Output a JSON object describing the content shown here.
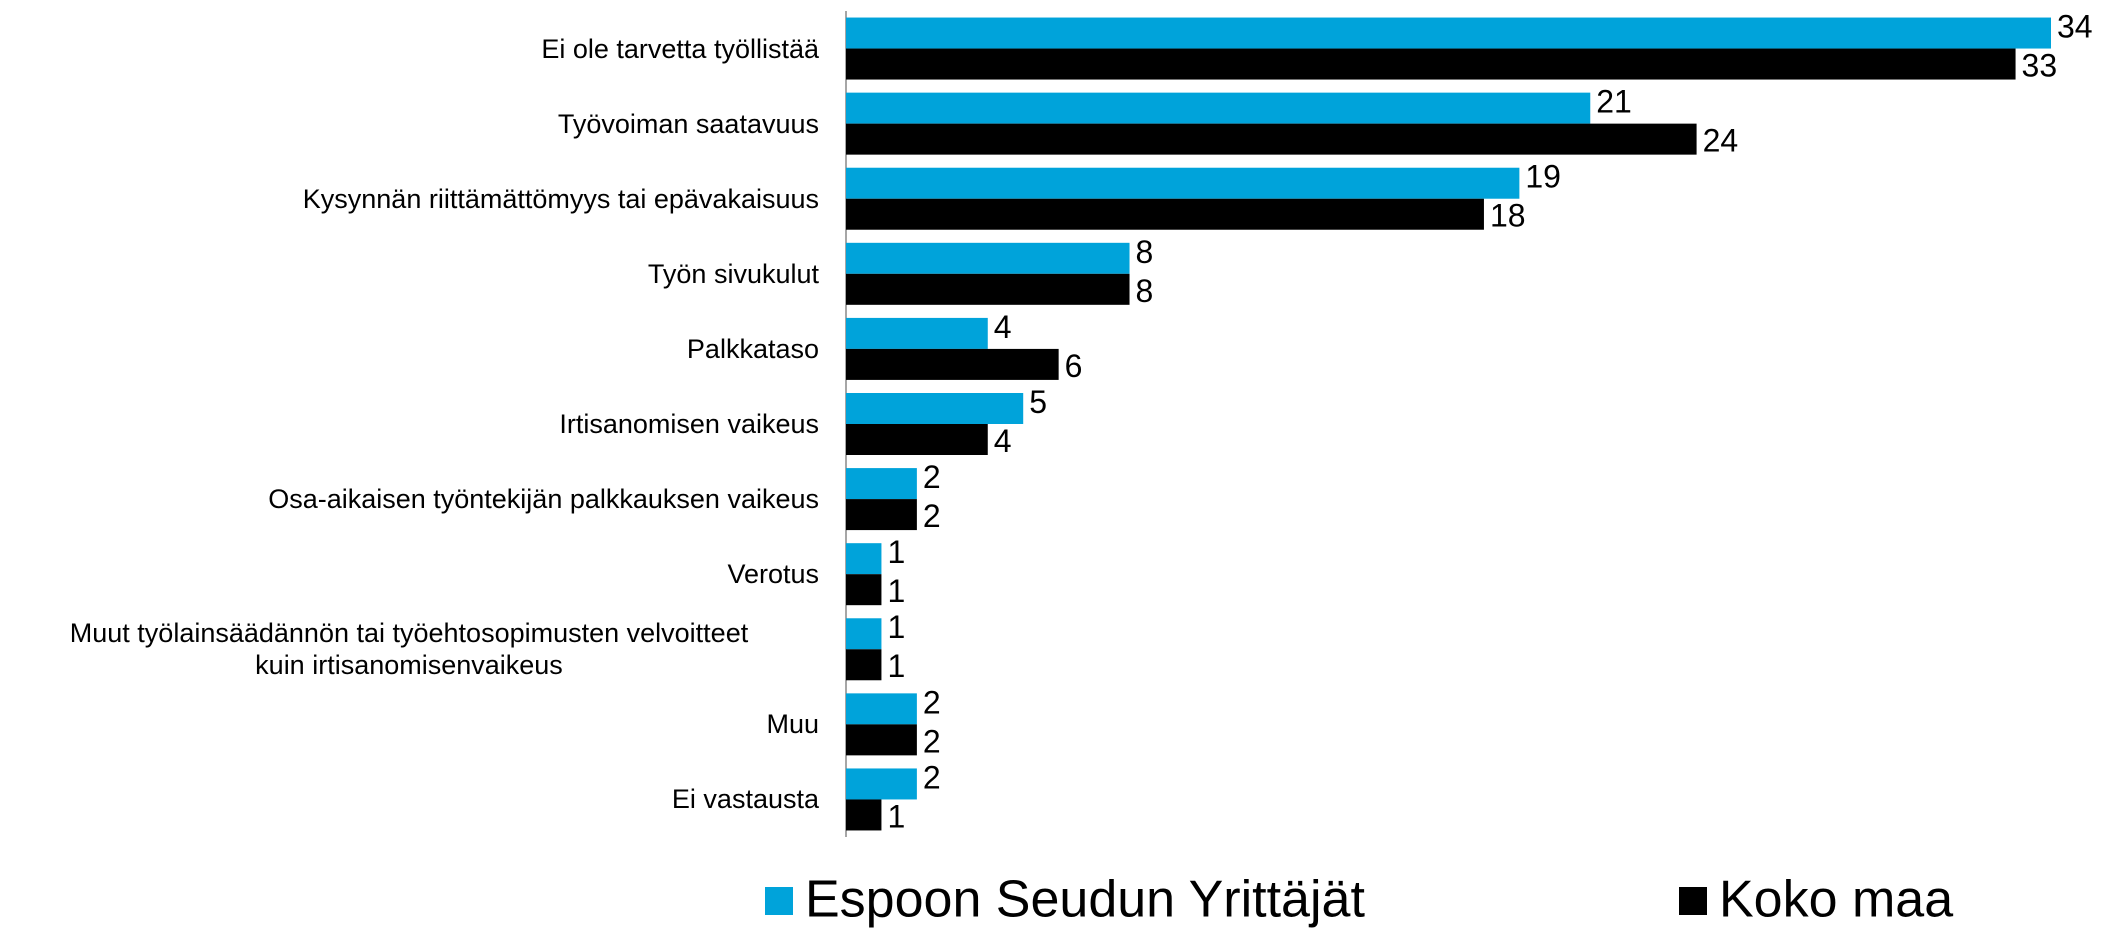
{
  "chart_data": {
    "type": "hbar",
    "categories": [
      "Ei ole tarvetta työllistää",
      "Työvoiman saatavuus",
      "Kysynnän riittämättömyys tai epävakaisuus",
      "Työn sivukulut",
      "Palkkataso",
      "Irtisanomisen vaikeus",
      "Osa-aikaisen työntekijän palkkauksen vaikeus",
      "Verotus",
      "Muut työlainsäädännön tai työehtosopimusten velvoitteet\nkuin irtisanomisenvaikeus",
      "Muu",
      "Ei vastausta"
    ],
    "series": [
      {
        "name": "Espoon Seudun Yrittäjät",
        "color": "#00a3da",
        "values": [
          34,
          21,
          19,
          8,
          4,
          5,
          2,
          1,
          1,
          2,
          2
        ]
      },
      {
        "name": "Koko maa",
        "color": "#000000",
        "values": [
          33,
          24,
          18,
          8,
          6,
          4,
          2,
          1,
          1,
          2,
          1
        ]
      }
    ],
    "legend": "bottom"
  }
}
